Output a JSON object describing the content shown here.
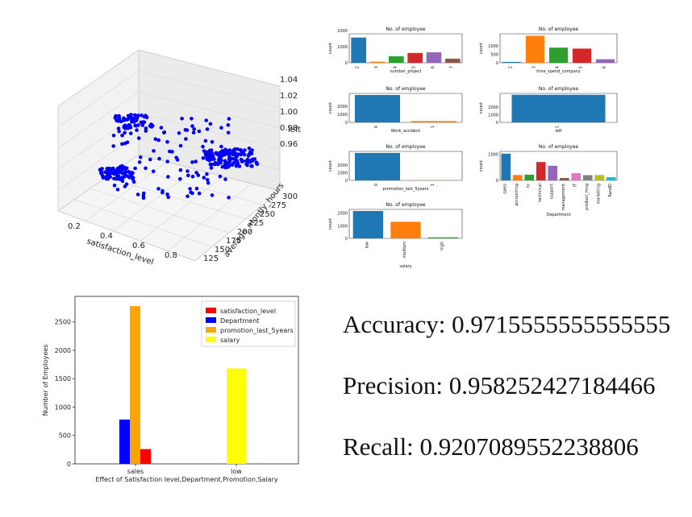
{
  "chart_data": [
    {
      "type": "scatter",
      "projection": "3d",
      "xlabel": "satisfaction_level",
      "ylabel": "average_montly_hours",
      "zlabel": "left",
      "xticks": [
        "0.2",
        "0.4",
        "0.6",
        "0.8"
      ],
      "yticks": [
        "125",
        "150",
        "175",
        "200",
        "225",
        "250",
        "275",
        "300"
      ],
      "zticks": [
        "0.96",
        "0.98",
        "1.00",
        "1.02",
        "1.04"
      ],
      "color": "#0000ff"
    },
    {
      "type": "bar",
      "title": "No. of employee",
      "xlabel": "number_project",
      "ylabel": "count",
      "categories": [
        "2",
        "3",
        "4",
        "5",
        "6",
        "7"
      ],
      "values": [
        1567,
        72,
        409,
        612,
        655,
        256
      ],
      "yticks": [
        "0",
        "1000",
        "2000"
      ],
      "ylim": [
        0,
        1800
      ]
    },
    {
      "type": "bar",
      "title": "No. of employee",
      "xlabel": "time_spend_company",
      "ylabel": "count",
      "categories": [
        "2",
        "3",
        "4",
        "5",
        "6"
      ],
      "values": [
        53,
        1586,
        890,
        833,
        209
      ],
      "yticks": [
        "0",
        "500",
        "1000"
      ],
      "ylim": [
        0,
        1700
      ]
    },
    {
      "type": "bar",
      "title": "No. of employee",
      "xlabel": "Work_accident",
      "ylabel": "count",
      "categories": [
        "0",
        "1"
      ],
      "values": [
        3402,
        169
      ],
      "yticks": [
        "0",
        "1000",
        "2000"
      ],
      "ylim": [
        0,
        3600
      ]
    },
    {
      "type": "bar",
      "title": "No. of employee",
      "xlabel": "left",
      "ylabel": "count",
      "categories": [
        "1"
      ],
      "values": [
        3571
      ],
      "yticks": [
        "0",
        "1000",
        "2000"
      ],
      "ylim": [
        0,
        3750
      ]
    },
    {
      "type": "bar",
      "title": "No. of employee",
      "xlabel": "promotion_last_5years",
      "ylabel": "count",
      "categories": [
        "0",
        "1"
      ],
      "values": [
        3552,
        19
      ],
      "yticks": [
        "0",
        "1000",
        "2000"
      ],
      "ylim": [
        0,
        3750
      ]
    },
    {
      "type": "bar",
      "title": "No. of employee",
      "xlabel": "Department",
      "ylabel": "count",
      "categories": [
        "sales",
        "accounting",
        "hr",
        "technical",
        "support",
        "management",
        "IT",
        "product_mng",
        "marketing",
        "RandD"
      ],
      "values": [
        1014,
        204,
        215,
        697,
        555,
        91,
        273,
        198,
        203,
        121
      ],
      "yticks": [
        "0",
        "1000"
      ],
      "ylim": [
        0,
        1100
      ]
    },
    {
      "type": "bar",
      "title": "No. of employee",
      "xlabel": "salary",
      "ylabel": "count",
      "categories": [
        "low",
        "medium",
        "high"
      ],
      "values": [
        2172,
        1317,
        82
      ],
      "yticks": [
        "0",
        "1000",
        "2000"
      ],
      "ylim": [
        0,
        2300
      ]
    },
    {
      "type": "bar",
      "xlabel": "Effect of Satisfaction level,Department,Promotion,Salary",
      "ylabel": "Number of Employees",
      "categories": [
        "sales",
        "low"
      ],
      "series": [
        {
          "name": "satisfaction_level",
          "color": "#ff0000",
          "values": [
            260,
            0
          ]
        },
        {
          "name": "Department",
          "color": "#0000ff",
          "values": [
            780,
            0
          ]
        },
        {
          "name": "promotion_last_5years",
          "color": "#ffa500",
          "values": [
            2780,
            0
          ]
        },
        {
          "name": "salary",
          "color": "#ffff00",
          "values": [
            0,
            1680
          ]
        }
      ],
      "yticks": [
        "0",
        "500",
        "1000",
        "1500",
        "2000",
        "2500"
      ],
      "ylim": [
        0,
        2950
      ],
      "legend": "top-right"
    }
  ],
  "metrics": [
    {
      "label": "Accuracy: 0.9715555555555555"
    },
    {
      "label": "Precision: 0.958252427184466"
    },
    {
      "label": "Recall: 0.9207089552238806"
    }
  ],
  "palette": [
    "#1f77b4",
    "#ff7f0e",
    "#2ca02c",
    "#d62728",
    "#9467bd",
    "#8c564b",
    "#e377c2",
    "#7f7f7f",
    "#bcbd22",
    "#17becf"
  ]
}
